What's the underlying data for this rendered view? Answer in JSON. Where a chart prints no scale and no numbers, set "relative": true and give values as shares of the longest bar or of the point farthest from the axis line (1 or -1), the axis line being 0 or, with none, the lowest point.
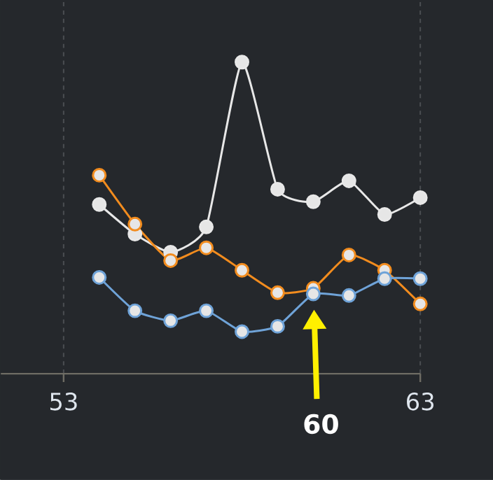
{
  "chart_data": {
    "type": "line",
    "relative": true,
    "x": [
      54,
      55,
      56,
      57,
      58,
      59,
      60,
      61,
      62,
      63
    ],
    "xlim": [
      51.24,
      63
    ],
    "xticks": [
      53,
      63
    ],
    "grid": "x",
    "marker": "circle",
    "series": [
      {
        "color": "#e8e8e8",
        "values": [
          0.543,
          0.448,
          0.39,
          0.471,
          1,
          0.592,
          0.552,
          0.619,
          0.511,
          0.565
        ]
      },
      {
        "color": "#f28c1e",
        "values": [
          0.637,
          0.48,
          0.363,
          0.404,
          0.332,
          0.26,
          0.274,
          0.381,
          0.332,
          0.224
        ]
      },
      {
        "color": "#6fa3d8",
        "values": [
          0.309,
          0.202,
          0.17,
          0.202,
          0.135,
          0.152,
          0.256,
          0.251,
          0.305,
          0.305
        ]
      }
    ],
    "annotations": [
      "60"
    ]
  }
}
